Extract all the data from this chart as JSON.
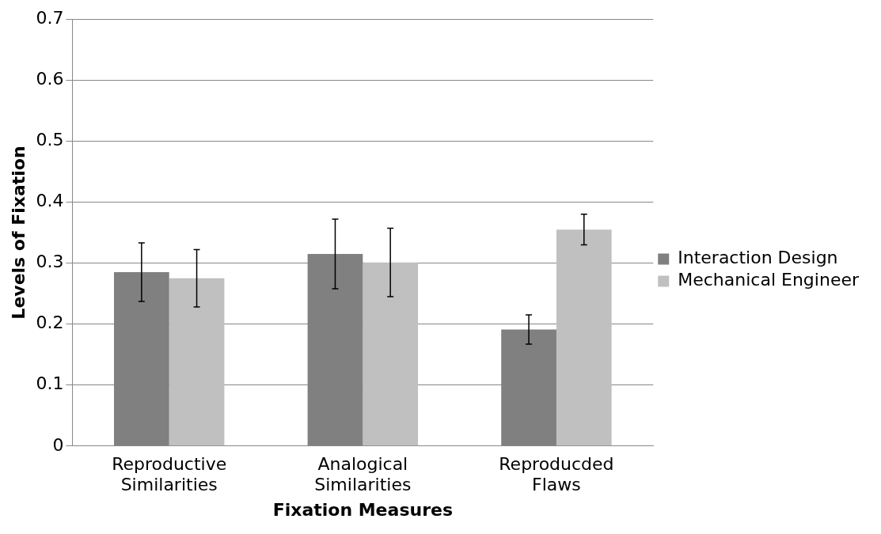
{
  "chart_data": {
    "type": "bar",
    "xlabel": "Fixation Measures",
    "ylabel": "Levels of Fixation",
    "categories": [
      "Reproductive Similarities",
      "Analogical Similarities",
      "Reproducded Flaws"
    ],
    "series": [
      {
        "name": "Interaction Design",
        "color": "#808080",
        "values": [
          0.285,
          0.315,
          0.191
        ],
        "errors": [
          0.048,
          0.057,
          0.024
        ]
      },
      {
        "name": "Mechanical Engineer",
        "color": "#c0c0c0",
        "values": [
          0.275,
          0.301,
          0.355
        ],
        "errors": [
          0.047,
          0.056,
          0.025
        ]
      }
    ],
    "ylim": [
      0,
      0.7
    ],
    "yticks": [
      0,
      0.1,
      0.2,
      0.3,
      0.4,
      0.5,
      0.6,
      0.7
    ],
    "grid": "y",
    "legend": "right"
  }
}
